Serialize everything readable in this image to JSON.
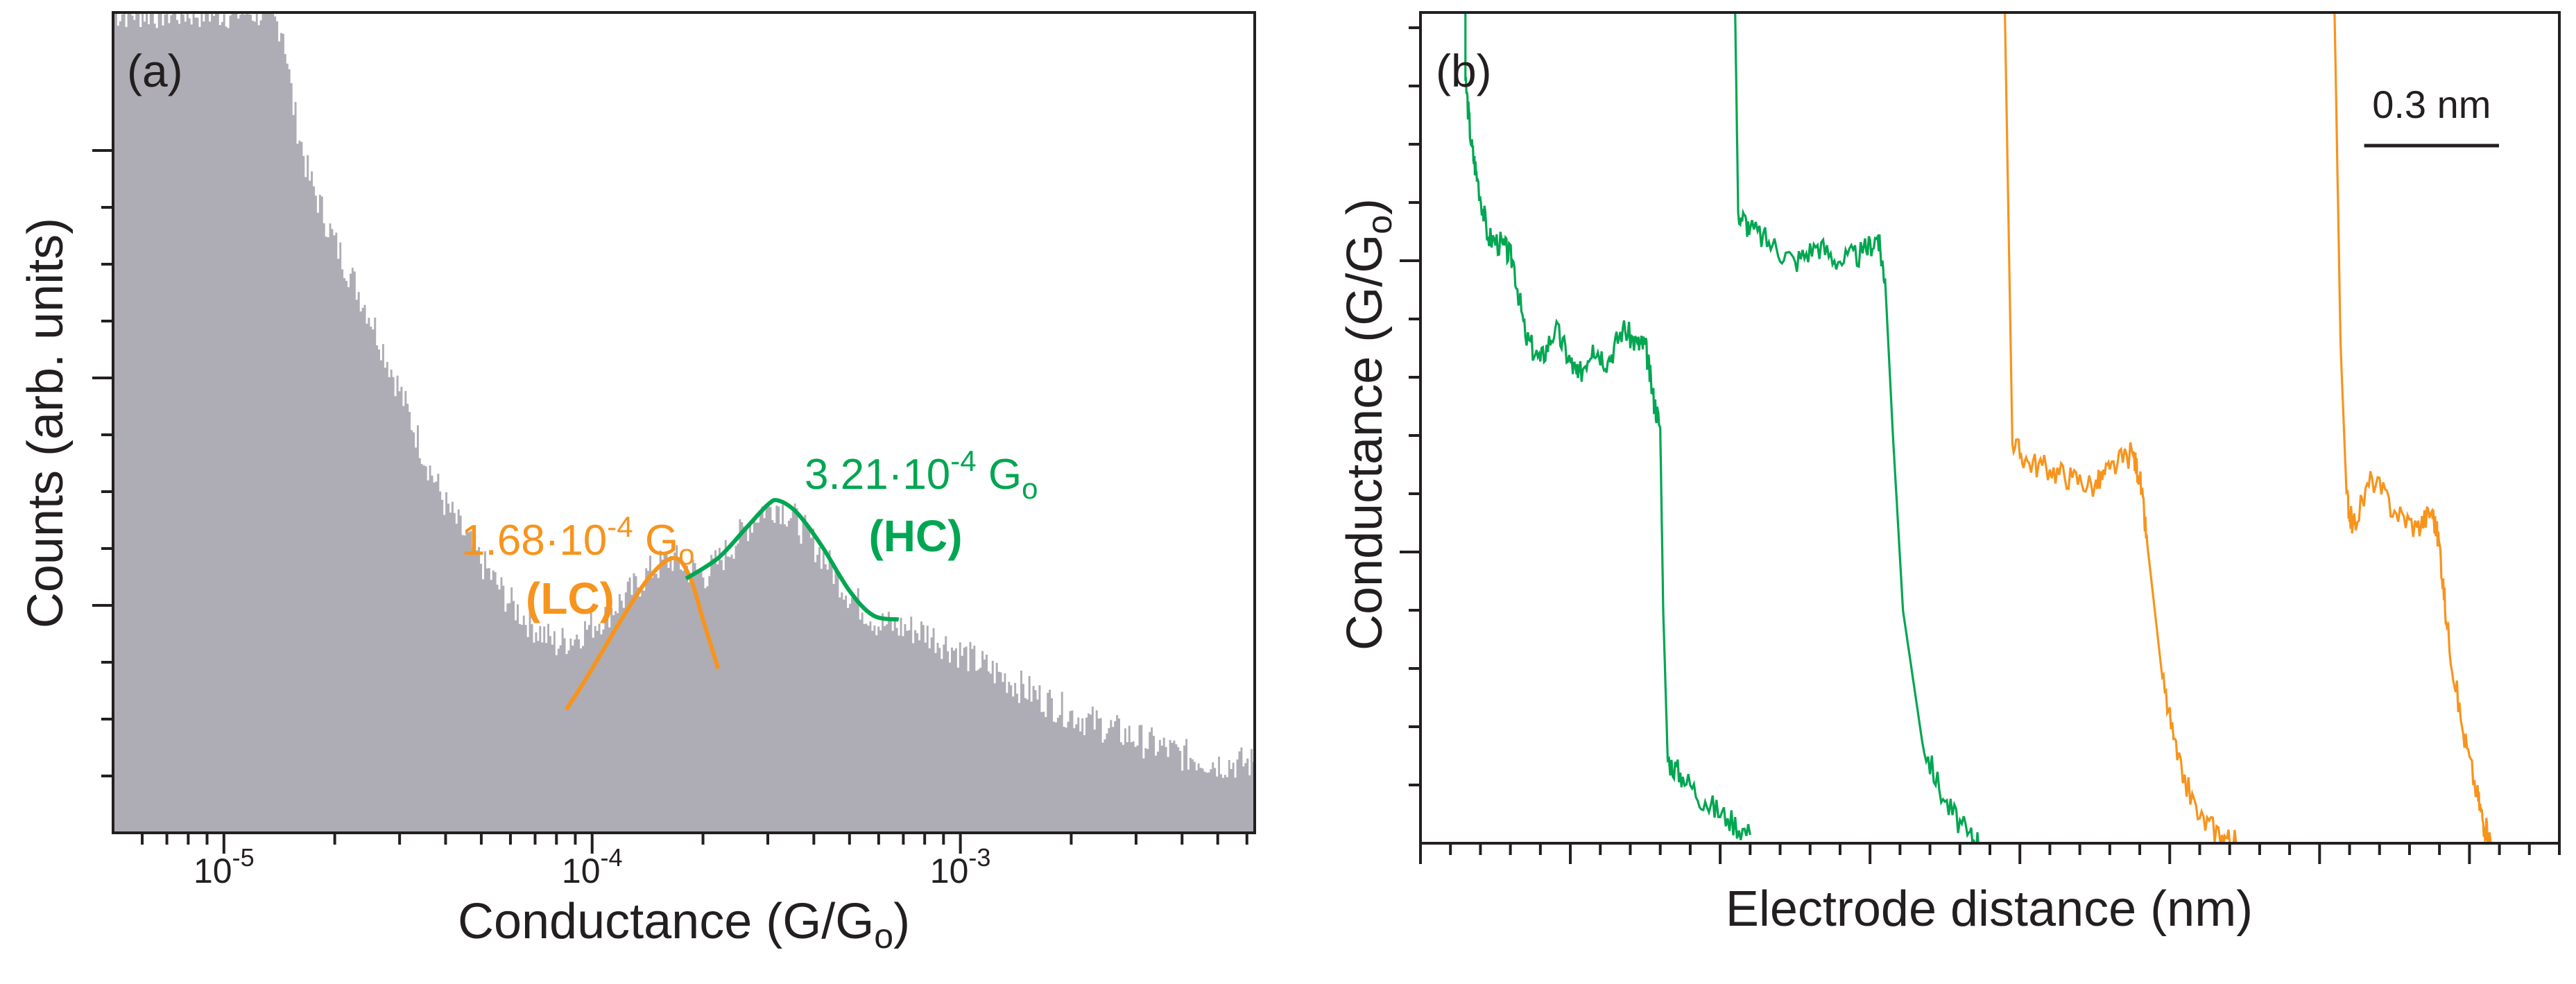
{
  "chart_data": [
    {
      "panel": "(a)",
      "type": "histogram",
      "xlabel": "Conductance (G/G",
      "xlabel_sub": "o",
      "xlabel_close": ")",
      "ylabel": "Counts (arb. units)",
      "xscale": "log",
      "xlim": [
        5e-06,
        0.0063
      ],
      "ylim": [
        0,
        100
      ],
      "grid": false,
      "tick_labels": [
        {
          "base": "10",
          "exp": "-5",
          "x": 1e-05
        },
        {
          "base": "10",
          "exp": "-4",
          "x": 0.0001
        },
        {
          "base": "10",
          "exp": "-3",
          "x": 0.001
        }
      ],
      "histogram_color": "#aeadb5",
      "histogram_envelope": [
        [
          5e-06,
          100
        ],
        [
          1.3e-05,
          100
        ],
        [
          1.45e-05,
          98
        ],
        [
          1.55e-05,
          88
        ],
        [
          1.7e-05,
          80
        ],
        [
          2e-05,
          72
        ],
        [
          2.5e-05,
          63
        ],
        [
          3e-05,
          54
        ],
        [
          3.5e-05,
          46
        ],
        [
          4e-05,
          40
        ],
        [
          5e-05,
          33
        ],
        [
          6e-05,
          28
        ],
        [
          7e-05,
          25
        ],
        [
          8e-05,
          23
        ],
        [
          9e-05,
          24
        ],
        [
          0.000105,
          26
        ],
        [
          0.000125,
          29
        ],
        [
          0.000145,
          32
        ],
        [
          0.000165,
          33.5
        ],
        [
          0.000185,
          32
        ],
        [
          0.000205,
          31.5
        ],
        [
          0.00023,
          34
        ],
        [
          0.00026,
          37
        ],
        [
          0.00029,
          39.5
        ],
        [
          0.00032,
          40
        ],
        [
          0.00036,
          38
        ],
        [
          0.00042,
          34
        ],
        [
          0.0005,
          29
        ],
        [
          0.0006,
          25.5
        ],
        [
          0.0007,
          25
        ],
        [
          0.0008,
          24.5
        ],
        [
          0.001,
          22
        ],
        [
          0.0015,
          17.5
        ],
        [
          0.002,
          14.5
        ],
        [
          0.003,
          11.5
        ],
        [
          0.004,
          9.5
        ],
        [
          0.005,
          8.5
        ],
        [
          0.0063,
          8.5
        ]
      ],
      "fits": [
        {
          "name": "LC",
          "value_text": "1.68·10",
          "value_exp": "-4",
          "value_unit": "G",
          "value_sub": "o",
          "label": "(LC)",
          "color": "#f7941d",
          "center": 0.000168,
          "points": [
            [
              8.5e-05,
              15
            ],
            [
              0.0001,
              20
            ],
            [
              0.00012,
              26
            ],
            [
              0.000145,
              31.5
            ],
            [
              0.000168,
              33.5
            ],
            [
              0.000185,
              31
            ],
            [
              0.0002,
              26
            ],
            [
              0.00022,
              20
            ]
          ]
        },
        {
          "name": "HC",
          "value_text": "3.21·10",
          "value_exp": "-4",
          "value_unit": "G",
          "value_sub": "o",
          "label": "(HC)",
          "color": "#00a651",
          "center": 0.000321,
          "points": [
            [
              0.00018,
              31
            ],
            [
              0.00022,
              33.5
            ],
            [
              0.00026,
              37
            ],
            [
              0.0003,
              40
            ],
            [
              0.000321,
              40.5
            ],
            [
              0.00036,
              39
            ],
            [
              0.00042,
              35
            ],
            [
              0.0005,
              29.5
            ],
            [
              0.00058,
              26.5
            ],
            [
              0.00068,
              26
            ]
          ]
        }
      ]
    },
    {
      "panel": "(b)",
      "type": "line",
      "xlabel": "Electrode distance (nm)",
      "ylabel": "Conductance (G/G",
      "ylabel_sub": "o",
      "ylabel_close": ")",
      "xlim": [
        0,
        7.6
      ],
      "ylim": [
        0,
        100
      ],
      "grid": false,
      "scale_bar_label": "0.3 nm",
      "scale_bar_length": 0.9,
      "series": [
        {
          "name": "green-trace-1",
          "color": "#00a651",
          "segments": [
            [
              0.3,
              100,
              0.3,
              92
            ],
            [
              0.3,
              92,
              0.55,
              80
            ],
            [
              0.55,
              80,
              0.65,
              72
            ],
            [
              0.65,
              72,
              0.9,
              62
            ],
            [
              0.9,
              62,
              1.0,
              55
            ],
            [
              1.0,
              55,
              1.5,
              60
            ],
            [
              1.5,
              60,
              1.6,
              52
            ],
            [
              1.6,
              52,
              1.75,
              28
            ],
            [
              1.75,
              28,
              2.1,
              5
            ],
            [
              2.1,
              5,
              2.2,
              0
            ]
          ],
          "points": [
            [
              0.3,
              100
            ],
            [
              0.3,
              92
            ],
            [
              0.34,
              84
            ],
            [
              0.38,
              80
            ],
            [
              0.45,
              73
            ],
            [
              0.55,
              72
            ],
            [
              0.62,
              70
            ],
            [
              0.7,
              61
            ],
            [
              0.8,
              58
            ],
            [
              0.9,
              62
            ],
            [
              1.0,
              58
            ],
            [
              1.05,
              56
            ],
            [
              1.15,
              60
            ],
            [
              1.25,
              58
            ],
            [
              1.35,
              62
            ],
            [
              1.45,
              60
            ],
            [
              1.5,
              60
            ],
            [
              1.55,
              54
            ],
            [
              1.6,
              50
            ],
            [
              1.62,
              28
            ],
            [
              1.65,
              10
            ],
            [
              1.75,
              8
            ],
            [
              1.9,
              5
            ],
            [
              2.05,
              3
            ],
            [
              2.2,
              1
            ]
          ]
        },
        {
          "name": "green-trace-2",
          "color": "#00a651",
          "points": [
            [
              2.1,
              100
            ],
            [
              2.12,
              76
            ],
            [
              2.2,
              74
            ],
            [
              2.35,
              72
            ],
            [
              2.5,
              70
            ],
            [
              2.65,
              72
            ],
            [
              2.8,
              70
            ],
            [
              2.95,
              71
            ],
            [
              3.05,
              73
            ],
            [
              3.1,
              68
            ],
            [
              3.15,
              50
            ],
            [
              3.22,
              28
            ],
            [
              3.35,
              12
            ],
            [
              3.5,
              5
            ],
            [
              3.65,
              1
            ],
            [
              3.75,
              0
            ]
          ]
        },
        {
          "name": "orange-trace-1",
          "color": "#f7941d",
          "points": [
            [
              3.9,
              100
            ],
            [
              3.95,
              48
            ],
            [
              4.05,
              46
            ],
            [
              4.2,
              45
            ],
            [
              4.35,
              44
            ],
            [
              4.5,
              43
            ],
            [
              4.6,
              45
            ],
            [
              4.75,
              47
            ],
            [
              4.8,
              44
            ],
            [
              4.85,
              36
            ],
            [
              4.95,
              20
            ],
            [
              5.05,
              10
            ],
            [
              5.2,
              3
            ],
            [
              5.35,
              1
            ],
            [
              5.45,
              0
            ]
          ]
        },
        {
          "name": "orange-trace-2",
          "color": "#f7941d",
          "points": [
            [
              6.1,
              100
            ],
            [
              6.14,
              60
            ],
            [
              6.18,
              42
            ],
            [
              6.22,
              38
            ],
            [
              6.35,
              44
            ],
            [
              6.5,
              40
            ],
            [
              6.65,
              38
            ],
            [
              6.75,
              40
            ],
            [
              6.8,
              36
            ],
            [
              6.85,
              26
            ],
            [
              6.95,
              14
            ],
            [
              7.05,
              6
            ],
            [
              7.1,
              2
            ],
            [
              7.15,
              0
            ]
          ]
        }
      ]
    }
  ]
}
